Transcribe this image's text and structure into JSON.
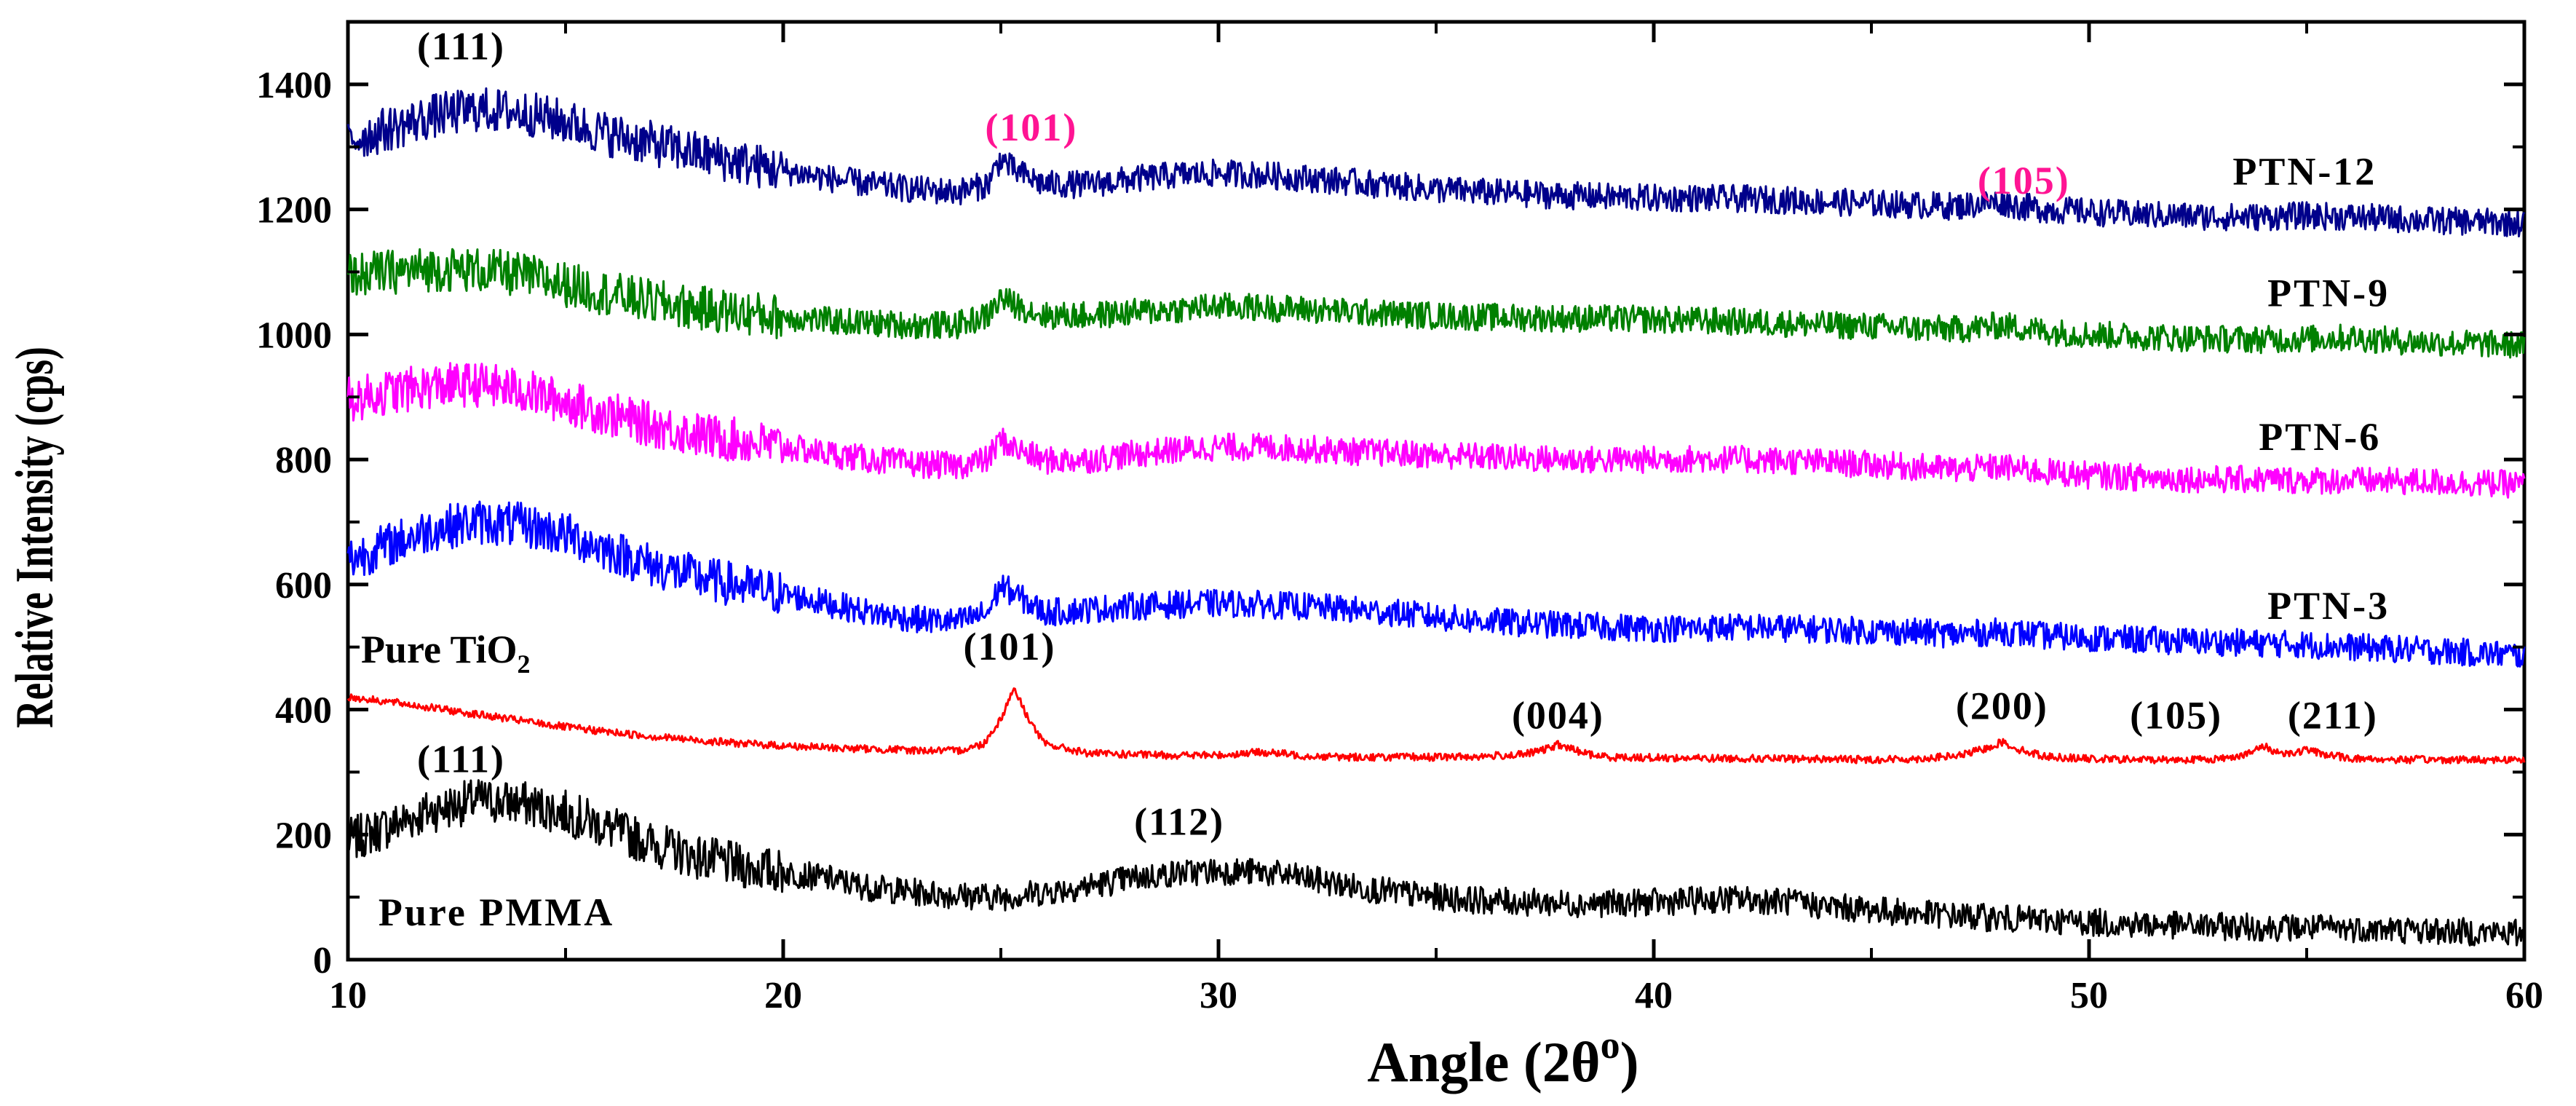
{
  "chart_data": {
    "type": "line",
    "title": "",
    "xlabel": "Angle (2θ",
    "xlabel_sup": "o",
    "xlabel_close": ")",
    "ylabel": "Relative Intensity (cps)",
    "xlim": [
      10,
      60
    ],
    "ylim": [
      0,
      1500
    ],
    "x_ticks": [
      10,
      20,
      30,
      40,
      50,
      60
    ],
    "y_ticks": [
      0,
      200,
      400,
      600,
      800,
      1000,
      1200,
      1400
    ],
    "grid": false,
    "legend": "none (curves labeled directly)",
    "series": [
      {
        "name": "Pure PMMA",
        "color": "#000000",
        "x": [
          10,
          11,
          12,
          13,
          14,
          15,
          16,
          17,
          18,
          19,
          20,
          21,
          22,
          23,
          24,
          25,
          26,
          27,
          28,
          29,
          30,
          31,
          32,
          33,
          34,
          35,
          36,
          37,
          38,
          39,
          40,
          41,
          42,
          43,
          44,
          45,
          46,
          47,
          48,
          49,
          50,
          51,
          52,
          53,
          54,
          55,
          56,
          57,
          58,
          59,
          60
        ],
        "y": [
          190,
          215,
          240,
          255,
          250,
          235,
          210,
          185,
          165,
          150,
          140,
          130,
          115,
          108,
          103,
          100,
          108,
          118,
          130,
          138,
          142,
          140,
          130,
          118,
          108,
          100,
          95,
          92,
          90,
          90,
          92,
          95,
          97,
          93,
          85,
          80,
          74,
          70,
          66,
          63,
          60,
          57,
          55,
          53,
          52,
          51,
          50,
          48,
          46,
          44,
          42
        ]
      },
      {
        "name": "Pure TiO2",
        "color": "#ff0000",
        "x": [
          10,
          11,
          12,
          13,
          14,
          15,
          16,
          17,
          18,
          19,
          20,
          21,
          22,
          23,
          24,
          24.6,
          25,
          25.3,
          25.6,
          26,
          27,
          28,
          29,
          30,
          31,
          32,
          33,
          34,
          35,
          36,
          37,
          37.5,
          37.8,
          38.1,
          38.6,
          39,
          40,
          41,
          42,
          43,
          44,
          45,
          46,
          47,
          47.6,
          48,
          48.4,
          49,
          50,
          51,
          52,
          53,
          53.7,
          54,
          54.3,
          54.7,
          55,
          55.3,
          56,
          57,
          58,
          59,
          60
        ],
        "y": [
          420,
          412,
          402,
          392,
          382,
          372,
          364,
          357,
          351,
          346,
          342,
          339,
          337,
          335,
          334,
          345,
          385,
          435,
          390,
          345,
          330,
          328,
          327,
          327,
          332,
          326,
          324,
          324,
          324,
          325,
          328,
          336,
          344,
          337,
          327,
          324,
          323,
          322,
          322,
          321,
          321,
          320,
          321,
          326,
          337,
          348,
          336,
          325,
          321,
          320,
          320,
          321,
          330,
          342,
          332,
          330,
          336,
          330,
          322,
          320,
          320,
          320,
          320
        ]
      },
      {
        "name": "PTN-3",
        "color": "#0000ff",
        "x": [
          10,
          11,
          12,
          13,
          14,
          15,
          16,
          17,
          18,
          19,
          20,
          21,
          22,
          23,
          24,
          24.7,
          25,
          25.3,
          26,
          27,
          28,
          29,
          30,
          31,
          32,
          33,
          34,
          35,
          36,
          37,
          38,
          39,
          40,
          41,
          42,
          43,
          44,
          45,
          46,
          47,
          48,
          49,
          50,
          51,
          52,
          53,
          54,
          55,
          56,
          57,
          58,
          59,
          60
        ],
        "y": [
          640,
          665,
          690,
          700,
          695,
          680,
          655,
          630,
          612,
          598,
          585,
          570,
          555,
          545,
          540,
          555,
          600,
          585,
          555,
          560,
          565,
          568,
          570,
          568,
          565,
          560,
          555,
          548,
          542,
          538,
          535,
          532,
          530,
          530,
          532,
          530,
          528,
          526,
          524,
          520,
          525,
          518,
          515,
          512,
          510,
          508,
          506,
          504,
          500,
          497,
          494,
          490,
          487
        ]
      },
      {
        "name": "PTN-6",
        "color": "#ff00ff",
        "x": [
          10,
          11,
          12,
          13,
          14,
          15,
          16,
          17,
          18,
          19,
          20,
          21,
          22,
          23,
          24,
          24.7,
          25,
          25.3,
          26,
          27,
          28,
          29,
          30,
          31,
          32,
          33,
          34,
          35,
          36,
          37,
          38,
          39,
          40,
          41,
          42,
          43,
          44,
          45,
          46,
          47,
          48,
          49,
          50,
          51,
          52,
          53,
          54,
          55,
          56,
          57,
          58,
          59,
          60
        ],
        "y": [
          895,
          908,
          918,
          920,
          910,
          892,
          872,
          855,
          840,
          830,
          820,
          810,
          800,
          793,
          790,
          800,
          832,
          818,
          798,
          800,
          808,
          815,
          820,
          820,
          817,
          813,
          810,
          807,
          805,
          802,
          800,
          799,
          800,
          801,
          800,
          798,
          795,
          792,
          788,
          784,
          788,
          780,
          775,
          772,
          770,
          768,
          768,
          767,
          766,
          765,
          764,
          762,
          760
        ]
      },
      {
        "name": "PTN-9",
        "color": "#008000",
        "x": [
          10,
          11,
          12,
          13,
          14,
          15,
          16,
          17,
          18,
          19,
          20,
          21,
          22,
          23,
          24,
          24.7,
          25,
          25.3,
          26,
          27,
          28,
          29,
          30,
          31,
          32,
          33,
          34,
          35,
          36,
          37,
          38,
          39,
          40,
          41,
          42,
          43,
          44,
          45,
          46,
          47,
          48,
          49,
          50,
          51,
          52,
          53,
          54,
          55,
          56,
          57,
          58,
          59,
          60
        ],
        "y": [
          1095,
          1100,
          1105,
          1103,
          1095,
          1080,
          1065,
          1052,
          1042,
          1035,
          1028,
          1022,
          1018,
          1015,
          1015,
          1030,
          1058,
          1048,
          1030,
          1030,
          1035,
          1040,
          1045,
          1043,
          1040,
          1036,
          1033,
          1030,
          1028,
          1027,
          1026,
          1025,
          1024,
          1022,
          1020,
          1018,
          1015,
          1013,
          1010,
          1008,
          1015,
          1005,
          1000,
          997,
          995,
          993,
          992,
          993,
          995,
          990,
          987,
          985,
          983
        ]
      },
      {
        "name": "PTN-12",
        "color": "#00008b",
        "x": [
          10,
          11,
          12,
          13,
          14,
          15,
          16,
          17,
          18,
          19,
          20,
          21,
          22,
          23,
          24,
          24.7,
          25,
          25.3,
          26,
          27,
          28,
          29,
          30,
          31,
          32,
          33,
          34,
          35,
          36,
          37,
          38,
          39,
          40,
          41,
          42,
          43,
          44,
          45,
          46,
          47,
          47.6,
          48,
          48.4,
          49,
          50,
          51,
          52,
          53,
          54,
          55,
          56,
          57,
          58,
          59,
          60
        ],
        "y": [
          1310,
          1330,
          1350,
          1360,
          1355,
          1340,
          1320,
          1305,
          1290,
          1275,
          1262,
          1250,
          1240,
          1232,
          1228,
          1240,
          1282,
          1262,
          1240,
          1240,
          1248,
          1255,
          1258,
          1255,
          1250,
          1244,
          1238,
          1232,
          1228,
          1225,
          1222,
          1220,
          1218,
          1218,
          1217,
          1215,
          1212,
          1210,
          1207,
          1205,
          1210,
          1212,
          1205,
          1200,
          1196,
          1192,
          1190,
          1188,
          1188,
          1190,
          1188,
          1185,
          1182,
          1180,
          1178
        ]
      }
    ],
    "series_labels": [
      {
        "text": "Pure PMMA",
        "x": 10.7,
        "y": 55,
        "color": "#000000"
      },
      {
        "text": "PTN-3",
        "x": 54.1,
        "y": 545,
        "color": "#000000"
      },
      {
        "text": "PTN-6",
        "x": 53.9,
        "y": 815,
        "color": "#000000"
      },
      {
        "text": "PTN-9",
        "x": 54.1,
        "y": 1045,
        "color": "#000000"
      },
      {
        "text": "PTN-12",
        "x": 53.3,
        "y": 1240,
        "color": "#000000"
      }
    ],
    "tio2_label": {
      "text": "Pure TiO",
      "sub": "2",
      "x": 10.3,
      "y": 475,
      "color": "#000000"
    },
    "annotations": [
      {
        "text": "(111)",
        "x": 12.6,
        "y": 1440,
        "color": "#000000"
      },
      {
        "text": "(101)",
        "x": 25.7,
        "y": 1310,
        "color": "#ff1493"
      },
      {
        "text": "(105)",
        "x": 48.5,
        "y": 1225,
        "color": "#ff1493"
      },
      {
        "text": "(101)",
        "x": 25.2,
        "y": 480,
        "color": "#000000"
      },
      {
        "text": "(004)",
        "x": 37.8,
        "y": 370,
        "color": "#000000"
      },
      {
        "text": "(200)",
        "x": 48.0,
        "y": 385,
        "color": "#000000"
      },
      {
        "text": "(105)",
        "x": 52.0,
        "y": 370,
        "color": "#000000"
      },
      {
        "text": "(211)",
        "x": 55.6,
        "y": 370,
        "color": "#000000"
      },
      {
        "text": "(111)",
        "x": 12.6,
        "y": 300,
        "color": "#000000"
      },
      {
        "text": "(112)",
        "x": 29.1,
        "y": 200,
        "color": "#000000"
      }
    ]
  }
}
